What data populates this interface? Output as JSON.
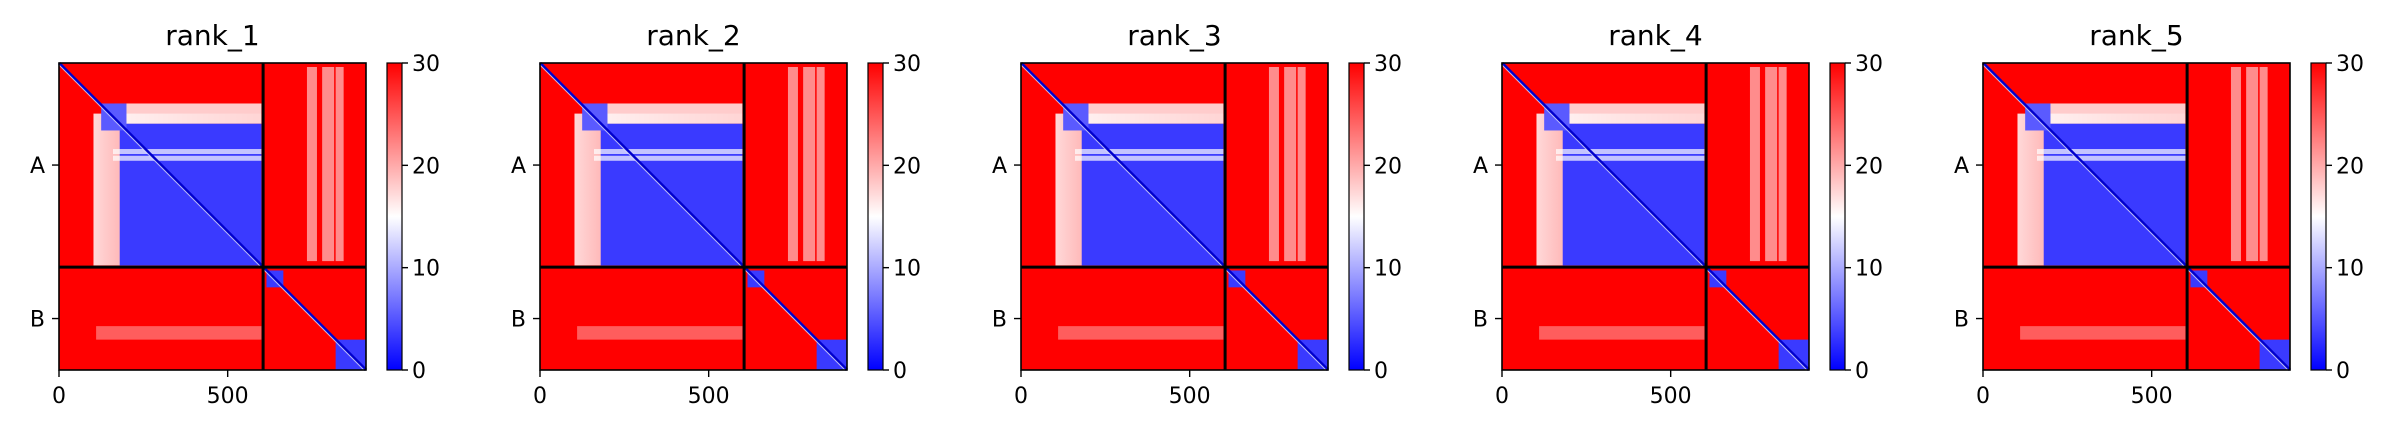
{
  "chart_data": [
    {
      "type": "heatmap",
      "title": "rank_1",
      "xlabel": "",
      "ylabel": "",
      "x_ticks": [
        0,
        500
      ],
      "xlim": [
        0,
        910
      ],
      "ylim": [
        910,
        0
      ],
      "chain_labels": [
        "A",
        "B"
      ],
      "chain_boundary": 605,
      "colorbar": {
        "min": 0,
        "max": 30,
        "ticks": [
          0,
          10,
          20,
          30
        ],
        "colors": [
          "#0000ff",
          "#ffffff",
          "#ff0000"
        ]
      }
    },
    {
      "type": "heatmap",
      "title": "rank_2",
      "xlabel": "",
      "ylabel": "",
      "x_ticks": [
        0,
        500
      ],
      "xlim": [
        0,
        910
      ],
      "ylim": [
        910,
        0
      ],
      "chain_labels": [
        "A",
        "B"
      ],
      "chain_boundary": 605,
      "colorbar": {
        "min": 0,
        "max": 30,
        "ticks": [
          0,
          10,
          20,
          30
        ],
        "colors": [
          "#0000ff",
          "#ffffff",
          "#ff0000"
        ]
      }
    },
    {
      "type": "heatmap",
      "title": "rank_3",
      "xlabel": "",
      "ylabel": "",
      "x_ticks": [
        0,
        500
      ],
      "xlim": [
        0,
        910
      ],
      "ylim": [
        910,
        0
      ],
      "chain_labels": [
        "A",
        "B"
      ],
      "chain_boundary": 605,
      "colorbar": {
        "min": 0,
        "max": 30,
        "ticks": [
          0,
          10,
          20,
          30
        ],
        "colors": [
          "#0000ff",
          "#ffffff",
          "#ff0000"
        ]
      }
    },
    {
      "type": "heatmap",
      "title": "rank_4",
      "xlabel": "",
      "ylabel": "",
      "x_ticks": [
        0,
        500
      ],
      "xlim": [
        0,
        910
      ],
      "ylim": [
        910,
        0
      ],
      "chain_labels": [
        "A",
        "B"
      ],
      "chain_boundary": 605,
      "colorbar": {
        "min": 0,
        "max": 30,
        "ticks": [
          0,
          10,
          20,
          30
        ],
        "colors": [
          "#0000ff",
          "#ffffff",
          "#ff0000"
        ]
      }
    },
    {
      "type": "heatmap",
      "title": "rank_5",
      "xlabel": "",
      "ylabel": "",
      "x_ticks": [
        0,
        500
      ],
      "xlim": [
        0,
        910
      ],
      "ylim": [
        910,
        0
      ],
      "chain_labels": [
        "A",
        "B"
      ],
      "chain_boundary": 605,
      "colorbar": {
        "min": 0,
        "max": 30,
        "ticks": [
          0,
          10,
          20,
          30
        ],
        "colors": [
          "#0000ff",
          "#ffffff",
          "#ff0000"
        ]
      }
    }
  ]
}
